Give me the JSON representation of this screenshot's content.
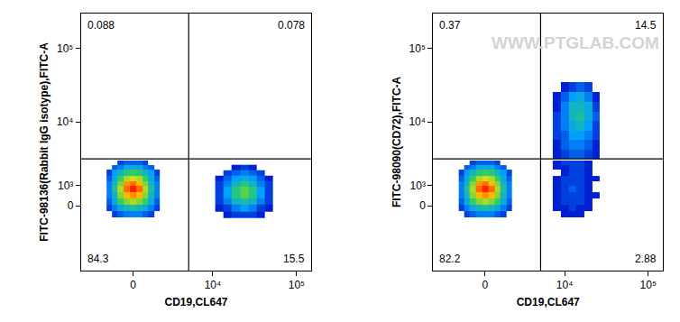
{
  "chart_data": [
    {
      "type": "heatmap",
      "x_label": "CD19,CL647",
      "y_label": "FITC-98136(Rabbit IgG isotype),FITC-A",
      "xlim": [
        -4500,
        150000
      ],
      "ylim": [
        -5400,
        300000
      ],
      "xticks": [
        0,
        {
          "value": 10000,
          "label": "10⁴"
        },
        {
          "value": 100000,
          "label": "10⁵"
        }
      ],
      "yticks": [
        0,
        {
          "value": 1000,
          "label": "10³"
        },
        {
          "value": 10000,
          "label": "10⁴"
        },
        {
          "value": 100000,
          "label": "10⁵"
        }
      ],
      "grid": false,
      "gate": {
        "x": 5000,
        "y": 3000
      },
      "quadrant_percentages": {
        "upper_left": 0.088,
        "upper_right": 0.078,
        "lower_left": 84.3,
        "lower_right": 15.5
      },
      "density_range": [
        0,
        1
      ],
      "populations": [
        {
          "x": [
            -1600,
            -1200,
            -800,
            -400,
            0,
            400,
            800,
            1200,
            1600
          ],
          "y": [
            -400,
            -100,
            200,
            500,
            800,
            1100,
            1400,
            1800,
            2200,
            2600
          ],
          "z": [
            [
              null,
              0.1,
              0.15,
              0.2,
              0.2,
              0.2,
              0.15,
              0.1,
              null
            ],
            [
              0.1,
              0.2,
              0.3,
              0.35,
              0.4,
              0.35,
              0.3,
              0.2,
              0.1
            ],
            [
              0.15,
              0.3,
              0.5,
              0.6,
              0.65,
              0.6,
              0.5,
              0.3,
              0.15
            ],
            [
              0.2,
              0.35,
              0.6,
              0.8,
              0.85,
              0.8,
              0.6,
              0.35,
              0.2
            ],
            [
              0.2,
              0.4,
              0.65,
              0.9,
              1,
              0.9,
              0.65,
              0.4,
              0.2
            ],
            [
              0.2,
              0.35,
              0.6,
              0.85,
              0.9,
              0.8,
              0.6,
              0.35,
              0.2
            ],
            [
              0.15,
              0.3,
              0.5,
              0.65,
              0.7,
              0.65,
              0.5,
              0.3,
              0.15
            ],
            [
              0.1,
              0.25,
              0.35,
              0.45,
              0.5,
              0.45,
              0.35,
              0.25,
              0.1
            ],
            [
              null,
              0.15,
              0.2,
              0.3,
              0.3,
              0.3,
              0.2,
              0.15,
              null
            ],
            [
              null,
              null,
              0.1,
              0.15,
              0.15,
              0.15,
              0.1,
              null,
              null
            ]
          ]
        },
        {
          "x": [
            12000,
            15000,
            19000,
            24000,
            30000,
            38000,
            47000
          ],
          "y": [
            -400,
            -100,
            200,
            500,
            800,
            1100,
            1400,
            1800,
            2200
          ],
          "z": [
            [
              null,
              0.05,
              0.1,
              0.1,
              0.1,
              0.05,
              null
            ],
            [
              0.05,
              0.1,
              0.2,
              0.25,
              0.2,
              0.1,
              0.05
            ],
            [
              0.1,
              0.2,
              0.35,
              0.4,
              0.35,
              0.2,
              0.1
            ],
            [
              0.1,
              0.25,
              0.45,
              0.55,
              0.45,
              0.25,
              0.1
            ],
            [
              0.1,
              0.25,
              0.45,
              0.55,
              0.45,
              0.25,
              0.1
            ],
            [
              0.1,
              0.2,
              0.35,
              0.45,
              0.35,
              0.2,
              0.1
            ],
            [
              0.05,
              0.15,
              0.25,
              0.3,
              0.25,
              0.15,
              0.05
            ],
            [
              null,
              0.1,
              0.15,
              0.2,
              0.15,
              0.1,
              null
            ],
            [
              null,
              null,
              0.05,
              0.1,
              0.05,
              null,
              null
            ]
          ]
        }
      ]
    },
    {
      "type": "heatmap",
      "x_label": "CD19,CL647",
      "y_label": "FITC-98090(CD72),FITC-A",
      "watermark": "WWW.PTGLAB.COM",
      "xlim": [
        -4500,
        150000
      ],
      "ylim": [
        -5400,
        300000
      ],
      "xticks": [
        0,
        {
          "value": 10000,
          "label": "10⁴"
        },
        {
          "value": 100000,
          "label": "10⁵"
        }
      ],
      "yticks": [
        0,
        {
          "value": 1000,
          "label": "10³"
        },
        {
          "value": 10000,
          "label": "10⁴"
        },
        {
          "value": 100000,
          "label": "10⁵"
        }
      ],
      "grid": false,
      "gate": {
        "x": 5000,
        "y": 3000
      },
      "quadrant_percentages": {
        "upper_left": 0.37,
        "upper_right": 14.5,
        "lower_left": 82.2,
        "lower_right": 2.88
      },
      "density_range": [
        0,
        1
      ],
      "populations": [
        {
          "x": [
            -1600,
            -1200,
            -800,
            -400,
            0,
            400,
            800,
            1200,
            1600
          ],
          "y": [
            -400,
            -100,
            200,
            500,
            800,
            1100,
            1400,
            1800,
            2200,
            2600
          ],
          "z": [
            [
              null,
              0.1,
              0.15,
              0.2,
              0.2,
              0.2,
              0.15,
              0.1,
              null
            ],
            [
              0.1,
              0.2,
              0.3,
              0.35,
              0.4,
              0.35,
              0.3,
              0.2,
              0.1
            ],
            [
              0.15,
              0.3,
              0.5,
              0.6,
              0.65,
              0.6,
              0.5,
              0.3,
              0.15
            ],
            [
              0.2,
              0.35,
              0.6,
              0.8,
              0.85,
              0.8,
              0.6,
              0.35,
              0.2
            ],
            [
              0.2,
              0.4,
              0.65,
              0.9,
              1,
              0.9,
              0.65,
              0.4,
              0.2
            ],
            [
              0.2,
              0.35,
              0.6,
              0.85,
              0.9,
              0.8,
              0.6,
              0.35,
              0.2
            ],
            [
              0.15,
              0.3,
              0.5,
              0.65,
              0.7,
              0.65,
              0.5,
              0.3,
              0.15
            ],
            [
              0.1,
              0.25,
              0.35,
              0.45,
              0.5,
              0.45,
              0.35,
              0.25,
              0.1
            ],
            [
              null,
              0.15,
              0.2,
              0.3,
              0.3,
              0.3,
              0.2,
              0.15,
              null
            ],
            [
              null,
              null,
              0.1,
              0.15,
              0.15,
              0.15,
              0.1,
              null,
              null
            ]
          ]
        },
        {
          "x": [
            8000,
            10000,
            12500,
            15500,
            19500,
            24000
          ],
          "y": [
            3500,
            4800,
            6500,
            8800,
            12000,
            16000,
            22000,
            30000
          ],
          "z": [
            [
              0.05,
              0.1,
              0.15,
              0.15,
              0.1,
              0.05
            ],
            [
              0.05,
              0.15,
              0.2,
              0.2,
              0.15,
              0.05
            ],
            [
              0.1,
              0.15,
              0.25,
              0.25,
              0.2,
              0.1
            ],
            [
              0.1,
              0.2,
              0.3,
              0.35,
              0.25,
              0.1
            ],
            [
              0.1,
              0.2,
              0.35,
              0.4,
              0.3,
              0.15
            ],
            [
              0.05,
              0.2,
              0.35,
              0.35,
              0.3,
              0.1
            ],
            [
              0.05,
              0.15,
              0.25,
              0.3,
              0.2,
              0.05
            ],
            [
              null,
              0.05,
              0.1,
              0.15,
              0.1,
              null
            ]
          ]
        },
        {
          "x": [
            8000,
            10000,
            12500,
            15500,
            19500,
            24000
          ],
          "y": [
            -400,
            -100,
            200,
            500,
            800,
            1100,
            1400,
            1800,
            2200,
            2600
          ],
          "z": [
            [
              null,
              0.05,
              0.05,
              0.05,
              null,
              null
            ],
            [
              0.05,
              0.05,
              0.1,
              0.05,
              0.05,
              null
            ],
            [
              0.05,
              0.1,
              0.1,
              0.1,
              0.05,
              null
            ],
            [
              0.05,
              0.1,
              0.1,
              0.1,
              0.05,
              0.05
            ],
            [
              0.05,
              0.1,
              0.15,
              0.1,
              0.05,
              null
            ],
            [
              0.05,
              0.1,
              0.1,
              0.1,
              0.05,
              null
            ],
            [
              0.05,
              0.1,
              0.1,
              0.1,
              0.05,
              0.05
            ],
            [
              null,
              0.05,
              0.1,
              0.1,
              0.05,
              null
            ],
            [
              0.05,
              0.05,
              0.1,
              0.1,
              0.05,
              null
            ],
            [
              0.05,
              0.1,
              0.1,
              0.1,
              0.05,
              null
            ]
          ]
        }
      ]
    }
  ]
}
